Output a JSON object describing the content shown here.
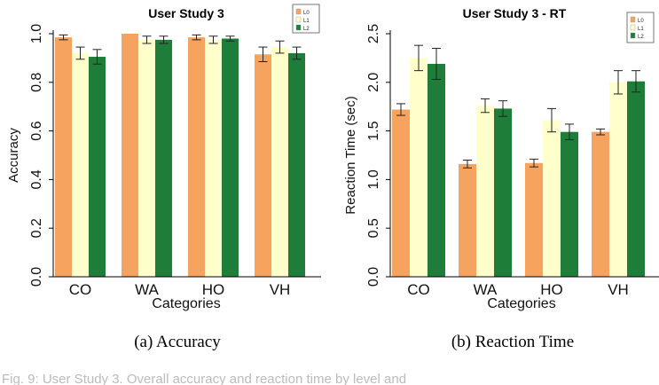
{
  "figure": {
    "captions": [
      "(a)  Accuracy",
      "(b)  Reaction Time"
    ],
    "footer_text": "Fig. 9: User Study 3. Overall accuracy and reaction time by level and"
  },
  "chart_data": [
    {
      "type": "bar",
      "title": "User Study 3",
      "xlabel": "Categories",
      "ylabel": "Accuracy",
      "categories": [
        "CO",
        "WA",
        "HO",
        "VH"
      ],
      "ylim": [
        0,
        1.0
      ],
      "yticks": [
        "0.0",
        "0.2",
        "0.4",
        "0.6",
        "0.8",
        "1.0"
      ],
      "ytick_values": [
        0,
        0.2,
        0.4,
        0.6,
        0.8,
        1.0
      ],
      "grid": false,
      "legend_position": "top-right",
      "series": [
        {
          "name": "L0",
          "color": "#f5a35f",
          "values": [
            0.985,
            1.0,
            0.985,
            0.915
          ],
          "errors": [
            0.01,
            0.0,
            0.01,
            0.03
          ]
        },
        {
          "name": "L1",
          "color": "#ffffcc",
          "values": [
            0.92,
            0.975,
            0.975,
            0.945
          ],
          "errors": [
            0.025,
            0.015,
            0.015,
            0.025
          ]
        },
        {
          "name": "L2",
          "color": "#1f7d3a",
          "values": [
            0.905,
            0.975,
            0.98,
            0.92
          ],
          "errors": [
            0.03,
            0.015,
            0.01,
            0.025
          ]
        }
      ]
    },
    {
      "type": "bar",
      "title": "User Study 3 - RT",
      "xlabel": "Categories",
      "ylabel": "Reaction Time (sec)",
      "categories": [
        "CO",
        "WA",
        "HO",
        "VH"
      ],
      "ylim": [
        0,
        2.5
      ],
      "yticks": [
        "0.0",
        "0.5",
        "1.0",
        "1.5",
        "2.0",
        "2.5"
      ],
      "ytick_values": [
        0,
        0.5,
        1.0,
        1.5,
        2.0,
        2.5
      ],
      "grid": false,
      "legend_position": "top-right",
      "series": [
        {
          "name": "L0",
          "color": "#f5a35f",
          "values": [
            1.72,
            1.16,
            1.17,
            1.49
          ],
          "errors": [
            0.06,
            0.04,
            0.04,
            0.03
          ]
        },
        {
          "name": "L1",
          "color": "#ffffcc",
          "values": [
            2.25,
            1.76,
            1.61,
            2.0
          ],
          "errors": [
            0.13,
            0.07,
            0.12,
            0.12
          ]
        },
        {
          "name": "L2",
          "color": "#1f7d3a",
          "values": [
            2.19,
            1.73,
            1.49,
            2.01
          ],
          "errors": [
            0.16,
            0.08,
            0.08,
            0.11
          ]
        }
      ]
    }
  ]
}
